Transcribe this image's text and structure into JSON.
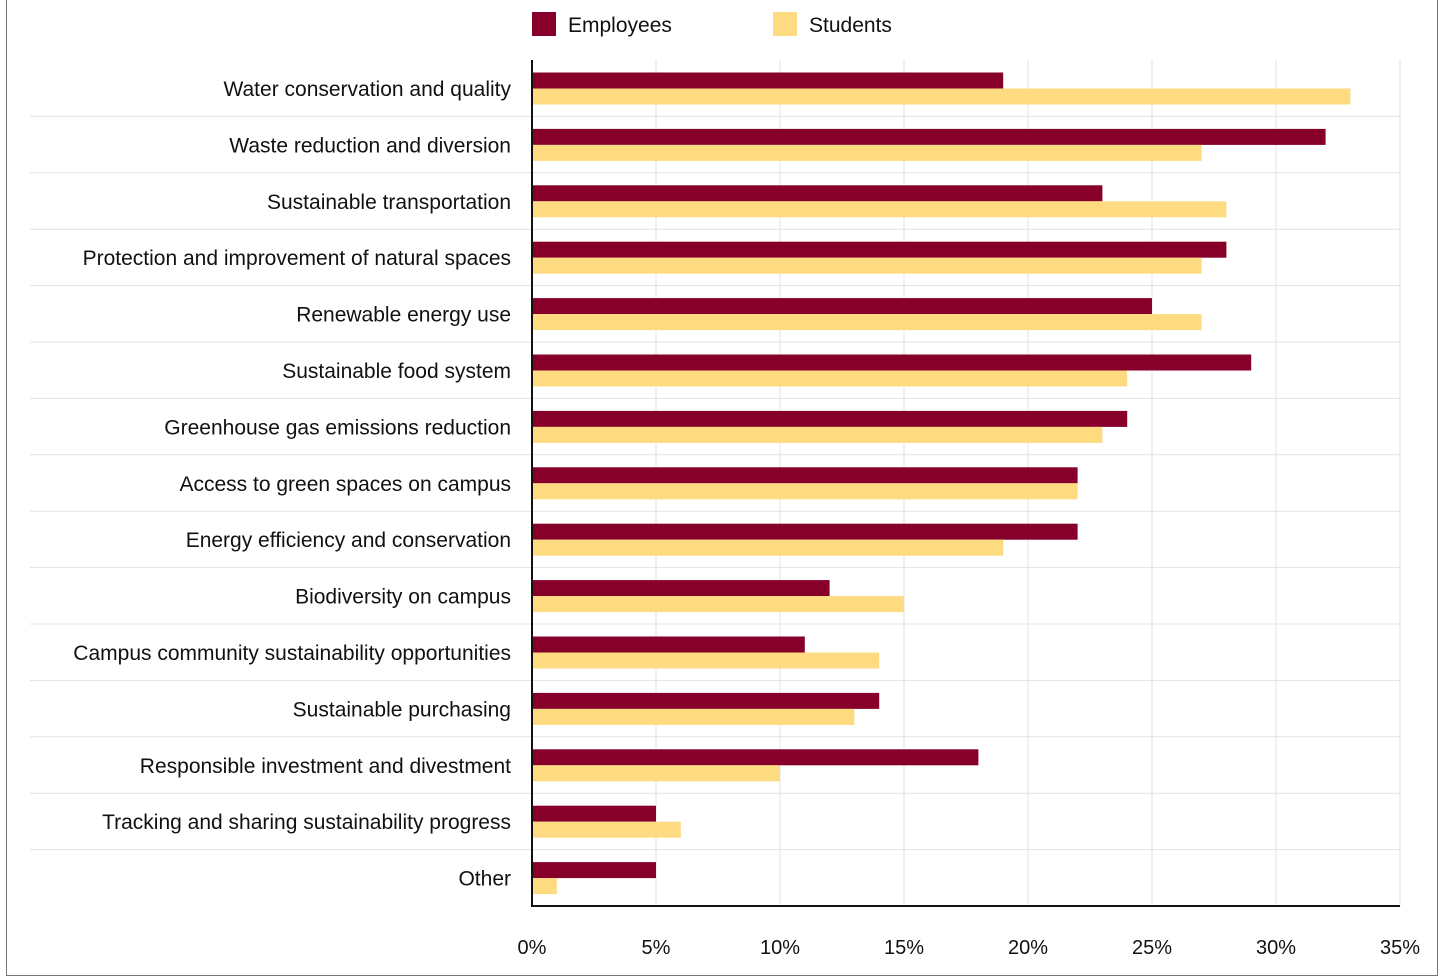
{
  "chart_data": {
    "type": "bar",
    "orientation": "horizontal",
    "categories": [
      "Water conservation and quality",
      "Waste reduction and diversion",
      "Sustainable transportation",
      "Protection and improvement of natural spaces",
      "Renewable energy use",
      "Sustainable food system",
      "Greenhouse gas emissions reduction",
      "Access to green spaces on campus",
      "Energy efficiency and conservation",
      "Biodiversity on campus",
      "Campus community sustainability opportunities",
      "Sustainable purchasing",
      "Responsible investment and divestment",
      "Tracking and sharing sustainability progress",
      "Other"
    ],
    "series": [
      {
        "name": "Employees",
        "color": "#86002a",
        "values": [
          19,
          32,
          23,
          28,
          25,
          29,
          24,
          22,
          22,
          12,
          11,
          14,
          18,
          5,
          5
        ]
      },
      {
        "name": "Students",
        "color": "#fedb80",
        "values": [
          33,
          27,
          28,
          27,
          27,
          24,
          23,
          22,
          19,
          15,
          14,
          13,
          10,
          6,
          1
        ]
      }
    ],
    "x_ticks": [
      "0%",
      "5%",
      "10%",
      "15%",
      "20%",
      "25%",
      "30%",
      "35%"
    ],
    "xlim": [
      0,
      35
    ],
    "unit": "%",
    "grid": true,
    "legend": "top",
    "title": "",
    "xlabel": "",
    "ylabel": ""
  }
}
